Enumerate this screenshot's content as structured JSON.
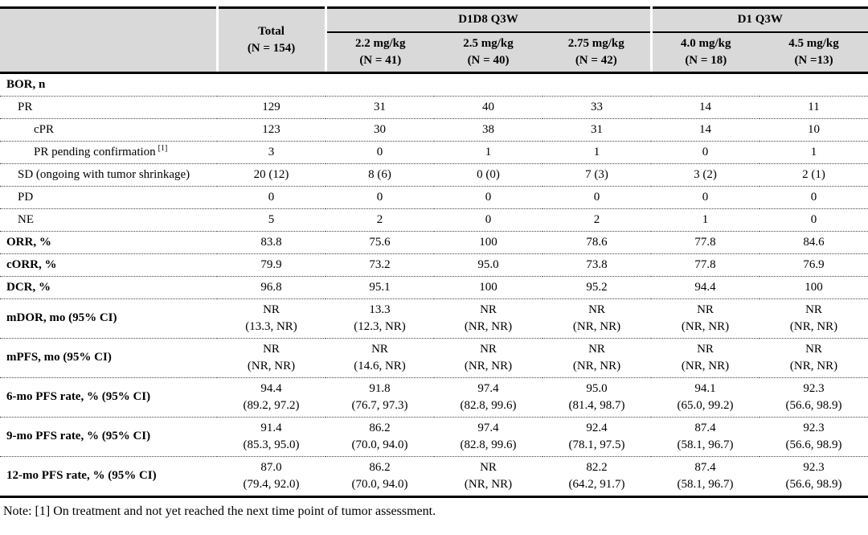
{
  "table": {
    "header": {
      "corner": "",
      "total": {
        "line1": "Total",
        "line2": "(N = 154)"
      },
      "groups": [
        {
          "label": "D1D8 Q3W"
        },
        {
          "label": "D1 Q3W"
        }
      ],
      "doses": [
        {
          "line1": "2.2 mg/kg",
          "line2": "(N = 41)"
        },
        {
          "line1": "2.5 mg/kg",
          "line2": "(N = 40)"
        },
        {
          "line1": "2.75 mg/kg",
          "line2": "(N = 42)"
        },
        {
          "line1": "4.0 mg/kg",
          "line2": "(N = 18)"
        },
        {
          "line1": "4.5 mg/kg",
          "line2": "(N =13)"
        }
      ]
    },
    "rows": [
      {
        "label": "BOR, n",
        "style": "section",
        "values": [
          "",
          "",
          "",
          "",
          "",
          ""
        ]
      },
      {
        "label": "PR",
        "style": "indent1",
        "values": [
          "129",
          "31",
          "40",
          "33",
          "14",
          "11"
        ]
      },
      {
        "label": "cPR",
        "style": "indent2",
        "values": [
          "123",
          "30",
          "38",
          "31",
          "14",
          "10"
        ]
      },
      {
        "label": "PR pending confirmation",
        "sup": "[1]",
        "style": "indent2",
        "values": [
          "3",
          "0",
          "1",
          "1",
          "0",
          "1"
        ]
      },
      {
        "label": "SD (ongoing with tumor shrinkage)",
        "style": "indent1",
        "values": [
          "20 (12)",
          "8 (6)",
          "0 (0)",
          "7 (3)",
          "3 (2)",
          "2 (1)"
        ]
      },
      {
        "label": "PD",
        "style": "indent1",
        "values": [
          "0",
          "0",
          "0",
          "0",
          "0",
          "0"
        ]
      },
      {
        "label": "NE",
        "style": "indent1",
        "values": [
          "5",
          "2",
          "0",
          "2",
          "1",
          "0"
        ]
      },
      {
        "label": "ORR, %",
        "style": "section",
        "values": [
          "83.8",
          "75.6",
          "100",
          "78.6",
          "77.8",
          "84.6"
        ]
      },
      {
        "label": "cORR, %",
        "style": "section",
        "values": [
          "79.9",
          "73.2",
          "95.0",
          "73.8",
          "77.8",
          "76.9"
        ]
      },
      {
        "label": "DCR, %",
        "style": "section",
        "values": [
          "96.8",
          "95.1",
          "100",
          "95.2",
          "94.4",
          "100"
        ]
      },
      {
        "label": "mDOR, mo (95% CI)",
        "style": "section",
        "values": [
          "NR\n(13.3, NR)",
          "13.3\n(12.3, NR)",
          "NR\n(NR, NR)",
          "NR\n(NR, NR)",
          "NR\n(NR, NR)",
          "NR\n(NR, NR)"
        ]
      },
      {
        "label": "mPFS, mo (95% CI)",
        "style": "section",
        "values": [
          "NR\n(NR, NR)",
          "NR\n(14.6, NR)",
          "NR\n(NR, NR)",
          "NR\n(NR, NR)",
          "NR\n(NR, NR)",
          "NR\n(NR, NR)"
        ]
      },
      {
        "label": "6-mo PFS rate, % (95% CI)",
        "style": "section",
        "values": [
          "94.4\n(89.2, 97.2)",
          "91.8\n(76.7, 97.3)",
          "97.4\n(82.8, 99.6)",
          "95.0\n(81.4, 98.7)",
          "94.1\n(65.0, 99.2)",
          "92.3\n(56.6, 98.9)"
        ]
      },
      {
        "label": "9-mo PFS rate, % (95% CI)",
        "style": "section",
        "values": [
          "91.4\n(85.3, 95.0)",
          "86.2\n(70.0, 94.0)",
          "97.4\n(82.8, 99.6)",
          "92.4\n(78.1, 97.5)",
          "87.4\n(58.1, 96.7)",
          "92.3\n(56.6, 98.9)"
        ]
      },
      {
        "label": "12-mo PFS rate, % (95% CI)",
        "style": "section",
        "values": [
          "87.0\n(79.4, 92.0)",
          "86.2\n(70.0, 94.0)",
          "NR\n(NR, NR)",
          "82.2\n(64.2, 91.7)",
          "87.4\n(58.1, 96.7)",
          "92.3\n(56.6, 98.9)"
        ]
      }
    ]
  },
  "note": "Note: [1] On treatment and not yet reached the next time point of tumor assessment.",
  "colors": {
    "header_bg": "#d9d9d9",
    "border_black": "#000000",
    "divider_white": "#ffffff"
  }
}
